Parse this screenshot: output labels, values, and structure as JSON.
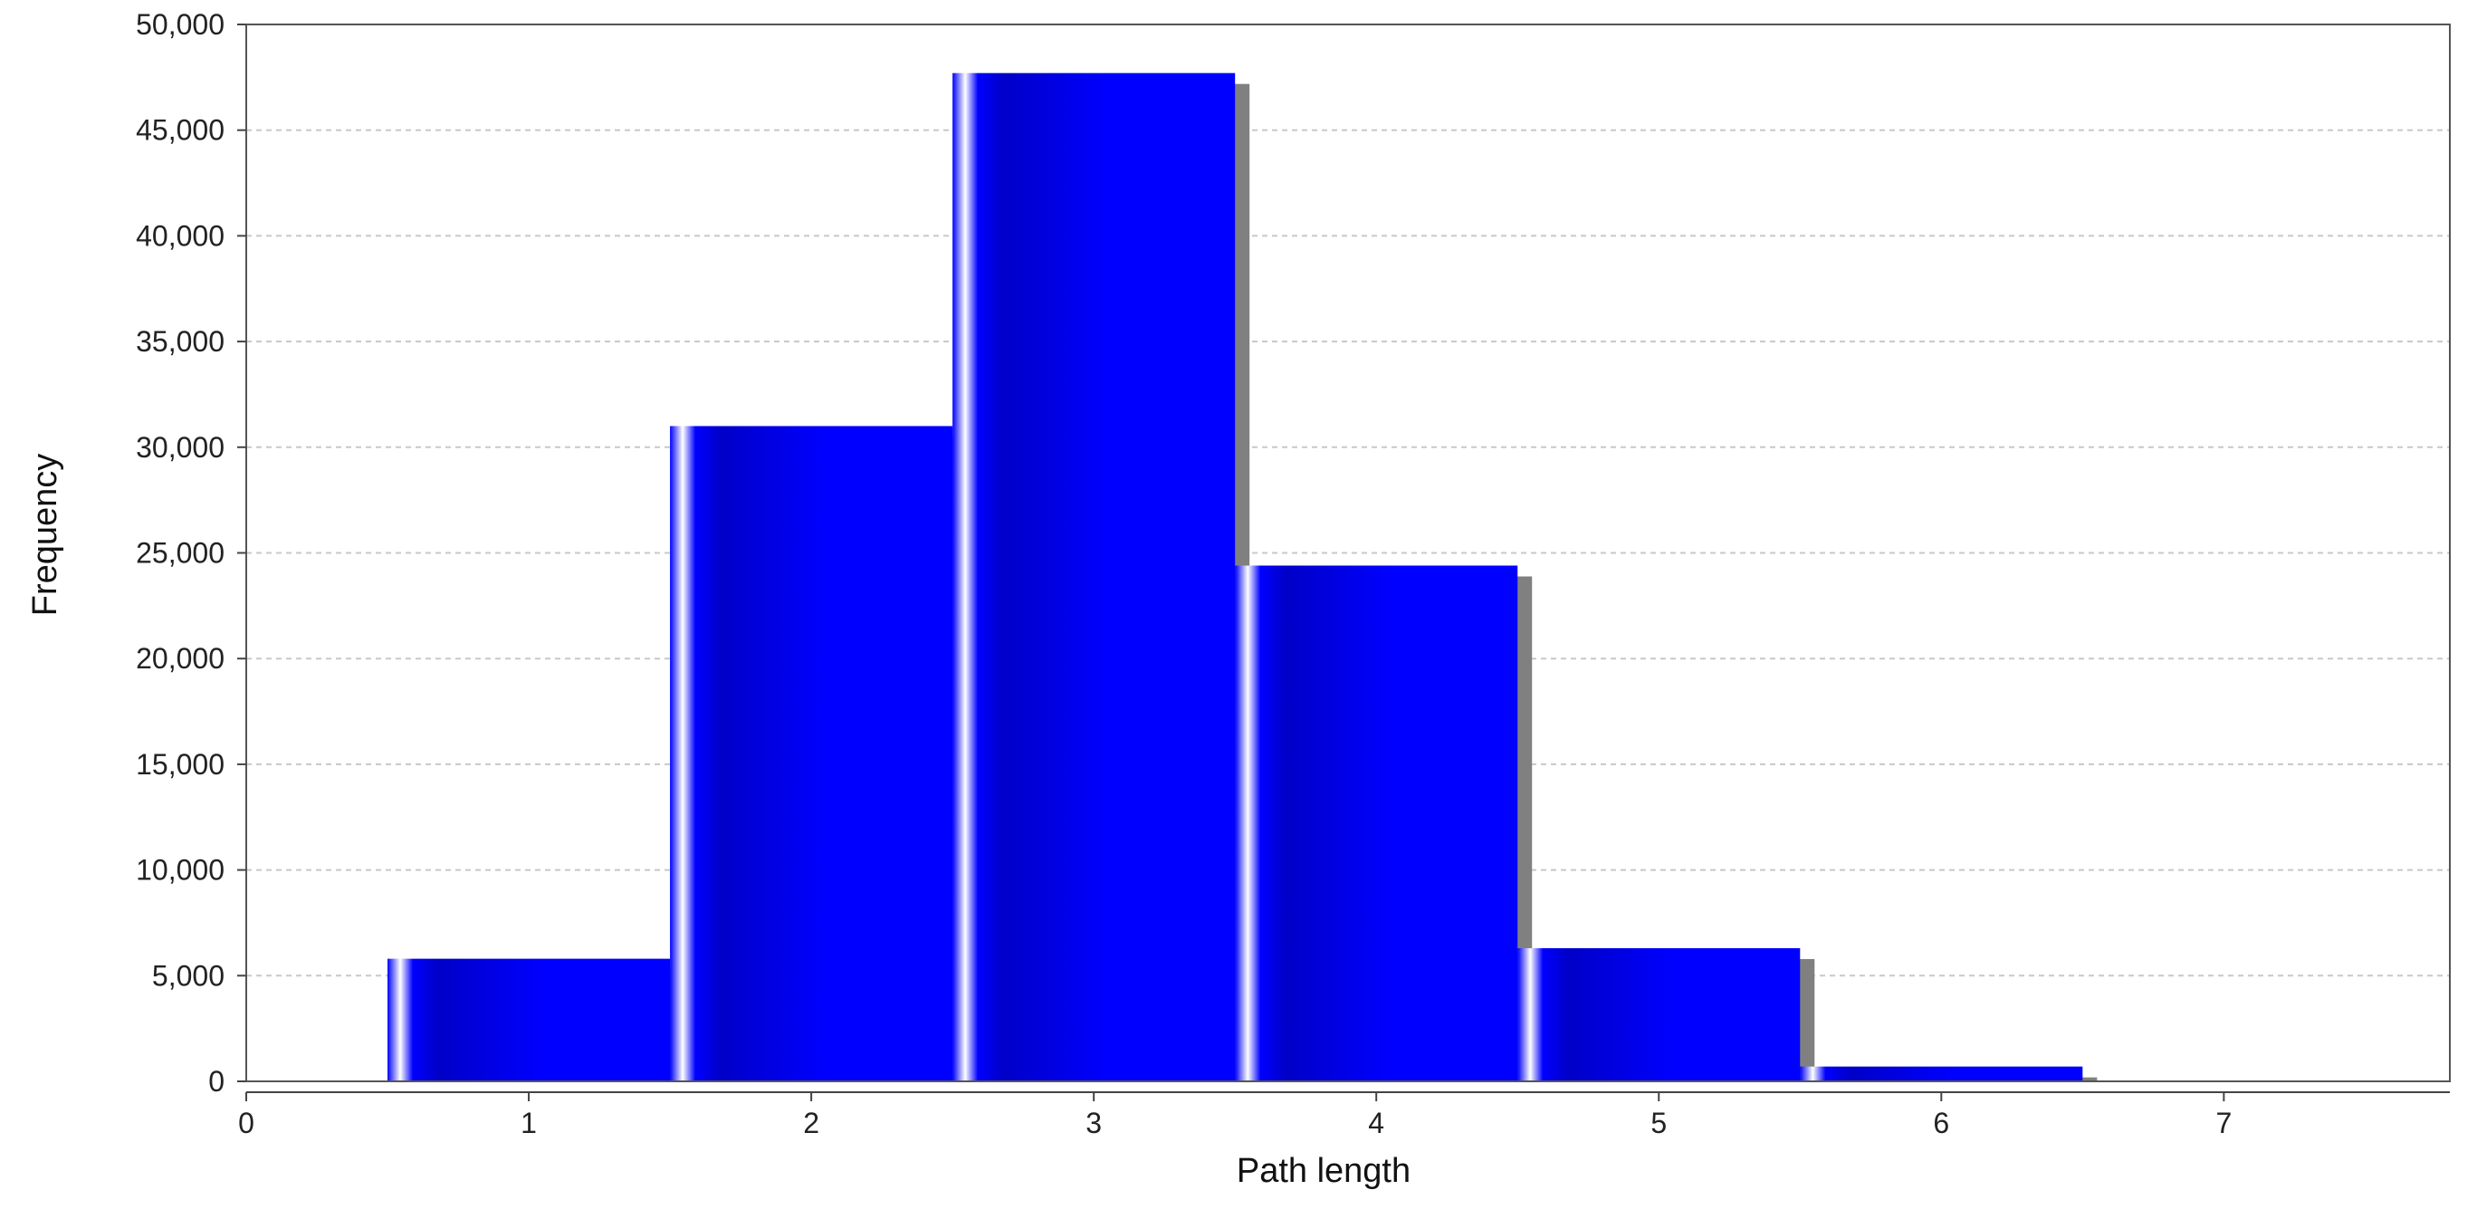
{
  "chart_data": {
    "type": "bar",
    "title": "",
    "xlabel": "Path length",
    "ylabel": "Frequency",
    "bin_width": 1,
    "x": [
      1,
      2,
      3,
      4,
      5,
      6
    ],
    "values": [
      5800,
      31000,
      47700,
      24400,
      6300,
      700
    ],
    "xlim": [
      0,
      7.8
    ],
    "ylim": [
      0,
      50000
    ],
    "x_ticks": [
      "0",
      "1",
      "2",
      "3",
      "4",
      "5",
      "6",
      "7"
    ],
    "y_ticks": [
      "0",
      "5,000",
      "10,000",
      "15,000",
      "20,000",
      "25,000",
      "30,000",
      "35,000",
      "40,000",
      "45,000",
      "50,000"
    ],
    "grid": "horizontal dashed",
    "legend": "none",
    "colors": {
      "bar": "#0000ff",
      "bar_dark": "#0000c8",
      "bar_highlight": "#ffffff",
      "shadow": "#808080",
      "grid": "#c8c8c8",
      "plot_border": "#555555",
      "axis": "#444444"
    }
  }
}
